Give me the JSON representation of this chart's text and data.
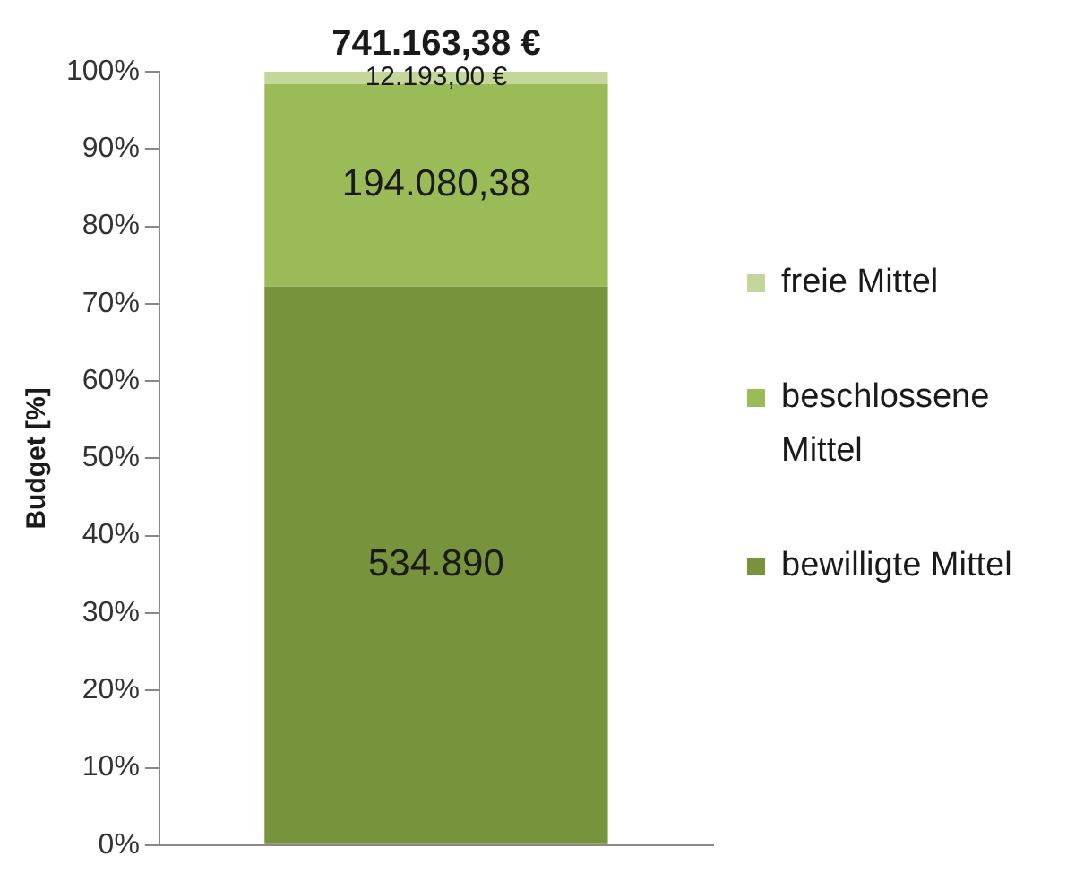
{
  "chart_data": {
    "type": "bar",
    "stacked": true,
    "title": "741.163,38 €",
    "ylabel": "Budget [%]",
    "categories": [
      null
    ],
    "series": [
      {
        "name": "bewilligte Mittel",
        "color": "#77933c",
        "values": [
          72.2
        ]
      },
      {
        "name": "beschlossene Mittel",
        "color": "#9bbb59",
        "values": [
          26.2
        ]
      },
      {
        "name": "freie Mittel",
        "color": "#c4d79b",
        "values": [
          1.6
        ]
      }
    ],
    "annotations": [
      "534.890",
      "194.080,38",
      "12.193,00 €"
    ],
    "ylim": [
      0,
      100
    ],
    "yticks": [
      {
        "value": 0,
        "label": "0%"
      },
      {
        "value": 10,
        "label": "10%"
      },
      {
        "value": 20,
        "label": "20%"
      },
      {
        "value": 30,
        "label": "30%"
      },
      {
        "value": 40,
        "label": "40%"
      },
      {
        "value": 50,
        "label": "50%"
      },
      {
        "value": 60,
        "label": "60%"
      },
      {
        "value": 70,
        "label": "70%"
      },
      {
        "value": 80,
        "label": "80%"
      },
      {
        "value": 90,
        "label": "90%"
      },
      {
        "value": 100,
        "label": "100%"
      }
    ],
    "grid": false,
    "legend": "right"
  }
}
